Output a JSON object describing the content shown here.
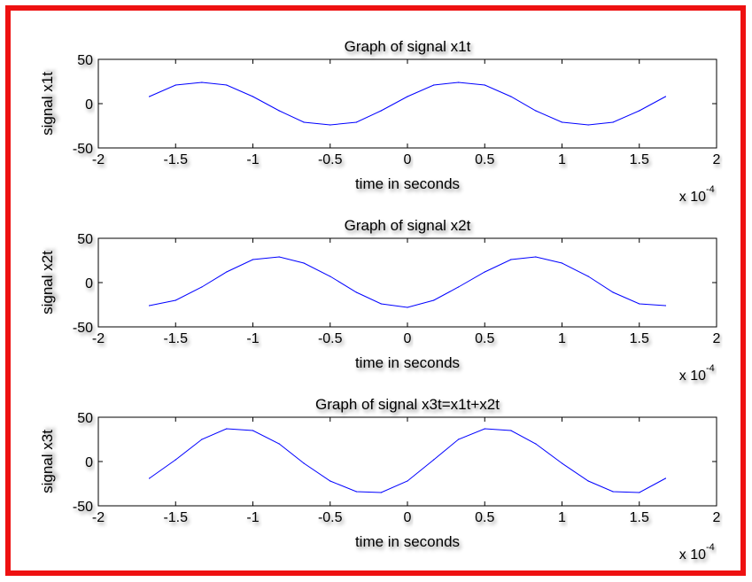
{
  "colors": {
    "border": "#ee1111",
    "line": "#0000ff",
    "axes": "#000000",
    "background": "#ffffff"
  },
  "chart_data": [
    {
      "type": "line",
      "title": "Graph of signal x1t",
      "xlabel": "time in seconds",
      "ylabel": "signal x1t",
      "x_scale_label": {
        "base": "x 10",
        "exponent": "-4"
      },
      "xlim": [
        -2,
        2
      ],
      "ylim": [
        -50,
        50
      ],
      "xticks": [
        "-2",
        "-1.5",
        "-1",
        "-0.5",
        "0",
        "0.5",
        "1",
        "1.5",
        "2"
      ],
      "yticks": [
        "50",
        "0",
        "-50"
      ],
      "grid": false,
      "series": [
        {
          "x": [
            -1.67,
            -1.5,
            -1.33,
            -1.17,
            -1.0,
            -0.83,
            -0.67,
            -0.5,
            -0.33,
            -0.17,
            0.0,
            0.17,
            0.33,
            0.5,
            0.67,
            0.83,
            1.0,
            1.17,
            1.33,
            1.5,
            1.67
          ],
          "y": [
            8,
            21,
            24,
            21,
            8,
            -8,
            -21,
            -24,
            -21,
            -8,
            8,
            21,
            24,
            21,
            8,
            -8,
            -21,
            -24,
            -21,
            -8,
            8
          ]
        }
      ]
    },
    {
      "type": "line",
      "title": "Graph of signal x2t",
      "xlabel": "time in seconds",
      "ylabel": "signal x2t",
      "x_scale_label": {
        "base": "x 10",
        "exponent": "-4"
      },
      "xlim": [
        -2,
        2
      ],
      "ylim": [
        -50,
        50
      ],
      "xticks": [
        "-2",
        "-1.5",
        "-1",
        "-0.5",
        "0",
        "0.5",
        "1",
        "1.5",
        "2"
      ],
      "yticks": [
        "50",
        "0",
        "-50"
      ],
      "grid": false,
      "series": [
        {
          "x": [
            -1.67,
            -1.5,
            -1.33,
            -1.17,
            -1.0,
            -0.83,
            -0.67,
            -0.5,
            -0.33,
            -0.17,
            0.0,
            0.17,
            0.33,
            0.5,
            0.67,
            0.83,
            1.0,
            1.17,
            1.33,
            1.5,
            1.67
          ],
          "y": [
            -26,
            -20,
            -5,
            12,
            26,
            29,
            22,
            7,
            -11,
            -24,
            -28,
            -20,
            -5,
            12,
            26,
            29,
            22,
            7,
            -11,
            -24,
            -26
          ]
        }
      ]
    },
    {
      "type": "line",
      "title": "Graph of signal x3t=x1t+x2t",
      "xlabel": "time in seconds",
      "ylabel": "signal x3t",
      "x_scale_label": {
        "base": "x 10",
        "exponent": "-4"
      },
      "xlim": [
        -2,
        2
      ],
      "ylim": [
        -50,
        50
      ],
      "xticks": [
        "-2",
        "-1.5",
        "-1",
        "-0.5",
        "0",
        "0.5",
        "1",
        "1.5",
        "2"
      ],
      "yticks": [
        "50",
        "0",
        "-50"
      ],
      "grid": false,
      "series": [
        {
          "x": [
            -1.67,
            -1.5,
            -1.33,
            -1.17,
            -1.0,
            -0.83,
            -0.67,
            -0.5,
            -0.33,
            -0.17,
            0.0,
            0.17,
            0.33,
            0.5,
            0.67,
            0.83,
            1.0,
            1.17,
            1.33,
            1.5,
            1.67
          ],
          "y": [
            -19,
            2,
            25,
            37,
            35,
            20,
            -2,
            -22,
            -34,
            -35,
            -22,
            2,
            25,
            37,
            35,
            20,
            -2,
            -22,
            -34,
            -35,
            -19
          ]
        }
      ]
    }
  ]
}
